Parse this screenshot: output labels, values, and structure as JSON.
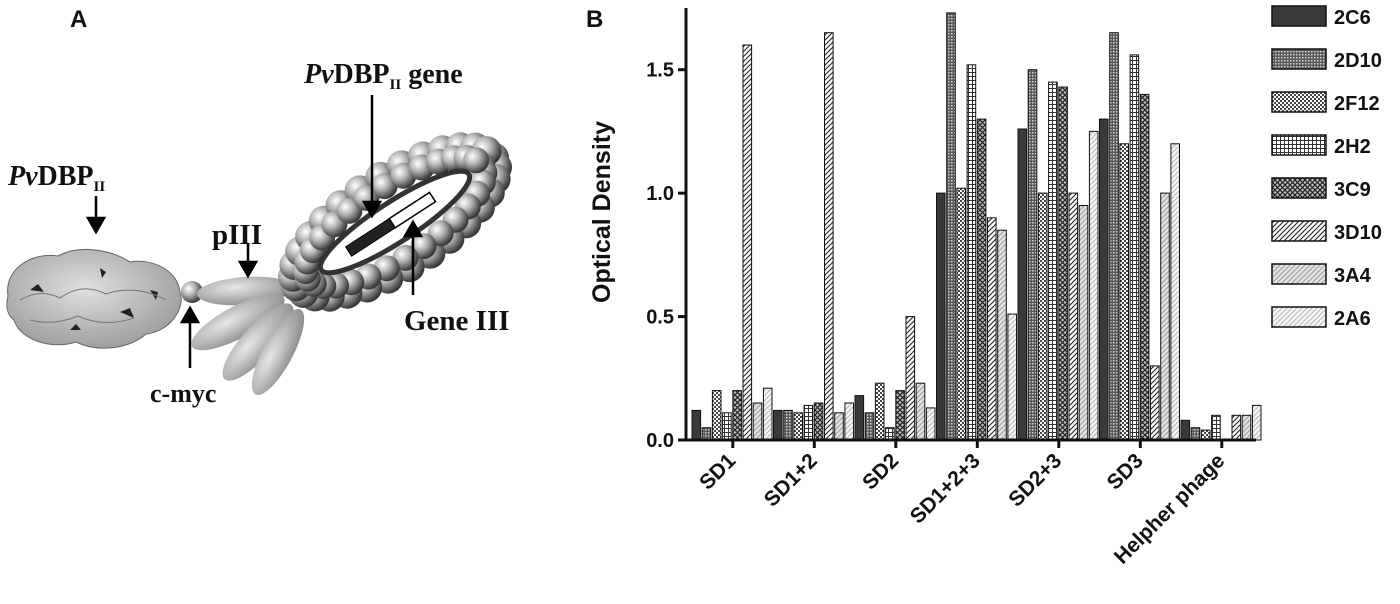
{
  "panel_a": {
    "letter": "A",
    "labels": {
      "pvdbp_prefix": "Pv",
      "pvdbp_main": "DBP",
      "pvdbp_sub": "II",
      "gene_prefix": "Pv",
      "gene_main": "DBP",
      "gene_sub": "II",
      "gene_suffix": " gene",
      "piii": "pIII",
      "cmyc": "c-myc",
      "gene_iii": "Gene III"
    }
  },
  "panel_b": {
    "letter": "B"
  },
  "chart_data": {
    "type": "bar",
    "title": "",
    "xlabel": "",
    "ylabel": "Optical Density",
    "ylim": [
      0,
      1.75
    ],
    "yticks": [
      0.0,
      0.5,
      1.0,
      1.5
    ],
    "ytick_labels": [
      "0.0",
      "0.5",
      "1.0",
      "1.5"
    ],
    "categories": [
      "SD1",
      "SD1+2",
      "SD2",
      "SD1+2+3",
      "SD2+3",
      "SD3",
      "Helpher phage"
    ],
    "legend_position": "right",
    "series": [
      {
        "name": "2C6",
        "pattern": "solid-dark",
        "values": [
          0.12,
          0.12,
          0.18,
          1.0,
          1.26,
          1.3,
          0.08
        ]
      },
      {
        "name": "2D10",
        "pattern": "dense-dots",
        "values": [
          0.05,
          0.12,
          0.11,
          1.73,
          1.5,
          1.65,
          0.05
        ]
      },
      {
        "name": "2F12",
        "pattern": "checker",
        "values": [
          0.2,
          0.11,
          0.23,
          1.02,
          1.0,
          1.2,
          0.04
        ]
      },
      {
        "name": "2H2",
        "pattern": "grid",
        "values": [
          0.11,
          0.14,
          0.05,
          1.52,
          1.45,
          1.56,
          0.1
        ]
      },
      {
        "name": "3C9",
        "pattern": "crosshatch",
        "values": [
          0.2,
          0.15,
          0.2,
          1.3,
          1.43,
          1.4,
          0.0
        ]
      },
      {
        "name": "3D10",
        "pattern": "diagonal",
        "values": [
          1.6,
          1.65,
          0.5,
          0.9,
          1.0,
          0.3,
          0.1
        ]
      },
      {
        "name": "3A4",
        "pattern": "light-gray",
        "values": [
          0.15,
          0.11,
          0.23,
          0.85,
          0.95,
          1.0,
          0.1
        ]
      },
      {
        "name": "2A6",
        "pattern": "light-diag",
        "values": [
          0.21,
          0.15,
          0.13,
          0.51,
          1.25,
          1.2,
          0.14
        ]
      }
    ]
  }
}
